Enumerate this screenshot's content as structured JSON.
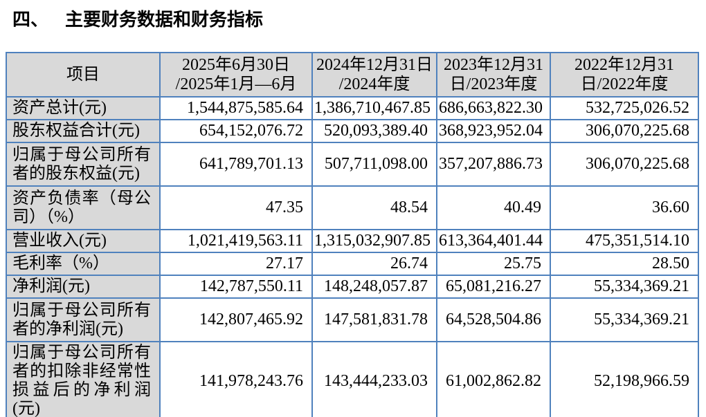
{
  "header": {
    "section_number": "四、",
    "title": "主要财务数据和财务指标"
  },
  "table": {
    "columns": [
      "项目",
      "2025年6月30日\n/2025年1月—6月",
      "2024年12月31日\n/2024年度",
      "2023年12月31\n日/2023年度",
      "2022年12月31\n日/2022年度"
    ],
    "rows": [
      {
        "label": "资产总计(元)",
        "values": [
          "1,544,875,585.64",
          "1,386,710,467.85",
          "686,663,822.30",
          "532,725,026.52"
        ]
      },
      {
        "label": "股东权益合计(元)",
        "values": [
          "654,152,076.72",
          "520,093,389.40",
          "368,923,952.04",
          "306,070,225.68"
        ]
      },
      {
        "label": "归属于母公司所有者的股东权益(元)",
        "values": [
          "641,789,701.13",
          "507,711,098.00",
          "357,207,886.73",
          "306,070,225.68"
        ]
      },
      {
        "label": "资产负债率（母公司）（%）",
        "values": [
          "47.35",
          "48.54",
          "40.49",
          "36.60"
        ]
      },
      {
        "label": "营业收入(元)",
        "values": [
          "1,021,419,563.11",
          "1,315,032,907.85",
          "613,364,401.44",
          "475,351,514.10"
        ]
      },
      {
        "label": "毛利率（%）",
        "values": [
          "27.17",
          "26.74",
          "25.75",
          "28.50"
        ]
      },
      {
        "label": "净利润(元)",
        "values": [
          "142,787,550.11",
          "148,248,057.87",
          "65,081,216.27",
          "55,334,369.21"
        ]
      },
      {
        "label": "归属于母公司所有者的净利润(元)",
        "values": [
          "142,807,465.92",
          "147,581,831.78",
          "64,528,504.86",
          "55,334,369.21"
        ]
      },
      {
        "label": "归属于母公司所有者的扣除非经常性损益后的净利润(元)",
        "values": [
          "141,978,243.76",
          "143,444,233.03",
          "61,002,862.82",
          "52,198,966.59"
        ]
      }
    ]
  },
  "colors": {
    "border": "#4f81bd",
    "shaded_cell_bg": "#d9d9d9",
    "text": "#000000",
    "page_bg": "#ffffff"
  }
}
